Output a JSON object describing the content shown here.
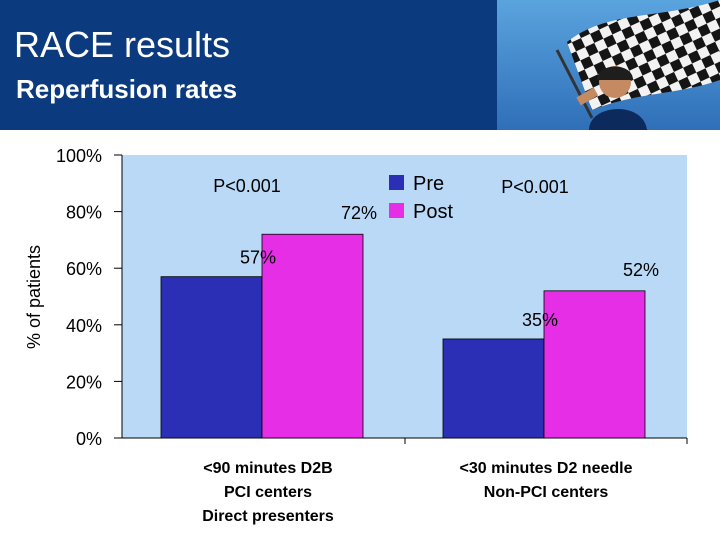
{
  "header": {
    "title": "RACE results",
    "subtitle": "Reperfusion rates"
  },
  "chart_data": {
    "type": "bar",
    "ylabel": "% of patients",
    "ylim": [
      0,
      100
    ],
    "yticks": [
      "0%",
      "20%",
      "40%",
      "60%",
      "80%",
      "100%"
    ],
    "categories": [
      [
        "<90 minutes D2B",
        "PCI centers",
        "Direct presenters"
      ],
      [
        "<30 minutes D2 needle",
        "Non-PCI centers"
      ]
    ],
    "series": [
      {
        "name": "Pre",
        "values": [
          57,
          35
        ],
        "labels": [
          "57%",
          "35%"
        ],
        "color": "#2b2fb5"
      },
      {
        "name": "Post",
        "values": [
          72,
          52
        ],
        "labels": [
          "72%",
          "52%"
        ],
        "color": "#e62ee6"
      }
    ],
    "annotations": [
      "P<0.001",
      "P<0.001"
    ],
    "legend": "top-right",
    "grid": false,
    "background": "#b9d9f7"
  }
}
